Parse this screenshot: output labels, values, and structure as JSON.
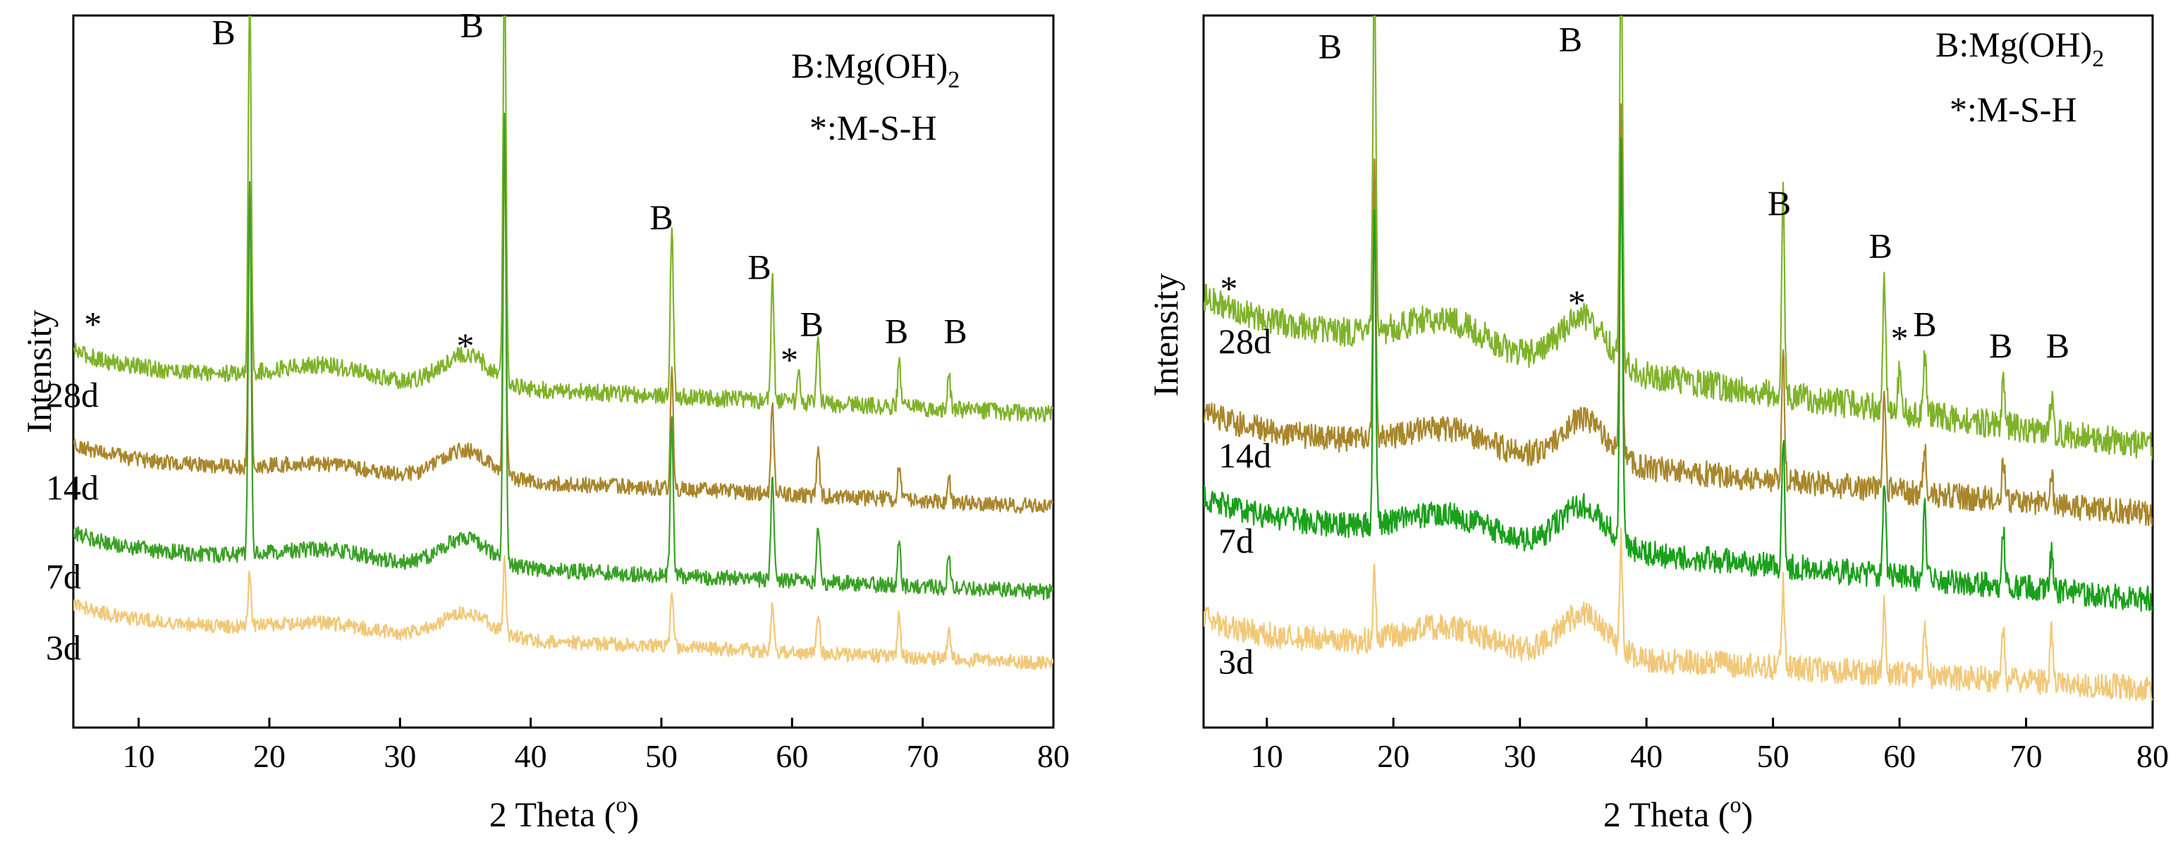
{
  "chart_data": [
    {
      "type": "line",
      "panel": "left",
      "xlabel": "2 Theta (o)",
      "xlabel_main": "2 Theta (",
      "xlabel_sup": "o",
      "xlabel_close": ")",
      "ylabel": "Intensity",
      "xlim": [
        5,
        80
      ],
      "xticks": [
        10,
        20,
        30,
        40,
        50,
        60,
        70,
        80
      ],
      "ylim": [
        0,
        100
      ],
      "legend": {
        "line1_main": "B:Mg(OH)",
        "line1_sub": "2",
        "line2": "*:M-S-H"
      },
      "series": [
        {
          "name": "28d",
          "color": "#7fb22a",
          "baseline_start": 50.5,
          "baseline_end": 44.0,
          "hump_pos": 35,
          "hump_height": 4.5,
          "hump2_height": 2.0,
          "noise": 1.2,
          "peaks": [
            [
              18.5,
              53
            ],
            [
              38.0,
              58
            ],
            [
              50.8,
              24
            ],
            [
              58.5,
              18
            ],
            [
              62.0,
              9
            ],
            [
              68.2,
              6
            ],
            [
              72.0,
              5
            ],
            [
              60.5,
              4
            ]
          ]
        },
        {
          "name": "14d",
          "color": "#a8862c",
          "baseline_start": 37.5,
          "baseline_end": 31.0,
          "hump_pos": 35,
          "hump_height": 4.0,
          "hump2_height": 1.2,
          "noise": 1.1,
          "peaks": [
            [
              18.5,
              40
            ],
            [
              38.0,
              48
            ],
            [
              50.8,
              16
            ],
            [
              58.5,
              13
            ],
            [
              62.0,
              7
            ],
            [
              68.2,
              5
            ],
            [
              72.0,
              4
            ]
          ]
        },
        {
          "name": "7d",
          "color": "#3aa025",
          "baseline_start": 25.0,
          "baseline_end": 19.0,
          "hump_pos": 35,
          "hump_height": 4.0,
          "hump2_height": 1.5,
          "noise": 1.1,
          "peaks": [
            [
              18.5,
              52
            ],
            [
              38.0,
              62
            ],
            [
              50.8,
              22
            ],
            [
              58.5,
              15
            ],
            [
              62.0,
              8
            ],
            [
              68.2,
              7
            ],
            [
              72.0,
              5
            ]
          ]
        },
        {
          "name": "3d",
          "color": "#f1c878",
          "baseline_start": 15.0,
          "baseline_end": 9.0,
          "hump_pos": 35,
          "hump_height": 3.5,
          "hump2_height": 1.2,
          "noise": 1.0,
          "peaks": [
            [
              18.5,
              8
            ],
            [
              38.0,
              10
            ],
            [
              50.8,
              8
            ],
            [
              58.5,
              7
            ],
            [
              62.0,
              6
            ],
            [
              68.2,
              6
            ],
            [
              72.0,
              5
            ]
          ]
        }
      ],
      "annotations": [
        {
          "text": "B",
          "x": 16.5,
          "y": 96
        },
        {
          "text": "B",
          "x": 35.5,
          "y": 97
        },
        {
          "text": "B",
          "x": 50.0,
          "y": 70
        },
        {
          "text": "B",
          "x": 57.5,
          "y": 63
        },
        {
          "text": "B",
          "x": 61.5,
          "y": 55
        },
        {
          "text": "B",
          "x": 68.0,
          "y": 54
        },
        {
          "text": "B",
          "x": 72.5,
          "y": 54
        },
        {
          "text": "*",
          "x": 6.5,
          "y": 55
        },
        {
          "text": "*",
          "x": 35.0,
          "y": 52
        },
        {
          "text": "*",
          "x": 59.8,
          "y": 50
        }
      ]
    },
    {
      "type": "line",
      "panel": "right",
      "xlabel": "2 Theta (o)",
      "xlabel_main": "2 Theta (",
      "xlabel_sup": "o",
      "xlabel_close": ")",
      "ylabel": "Intensity",
      "xlim": [
        5,
        80
      ],
      "xticks": [
        10,
        20,
        30,
        40,
        50,
        60,
        70,
        80
      ],
      "ylim": [
        0,
        100
      ],
      "legend": {
        "line1_main": "B:Mg(OH)",
        "line1_sub": "2",
        "line2": "*:M-S-H"
      },
      "series": [
        {
          "name": "28d",
          "color": "#7fb22a",
          "baseline_start": 58.0,
          "baseline_end": 39.5,
          "hump_pos": 35,
          "hump_height": 7.0,
          "hump2_height": 4.0,
          "noise": 2.0,
          "peaks": [
            [
              18.5,
              50
            ],
            [
              38.0,
              60
            ],
            [
              50.8,
              28
            ],
            [
              58.8,
              18
            ],
            [
              62.0,
              8
            ],
            [
              68.2,
              6
            ],
            [
              72.0,
              5
            ],
            [
              60.0,
              6
            ]
          ]
        },
        {
          "name": "14d",
          "color": "#a8862c",
          "baseline_start": 42.0,
          "baseline_end": 30.0,
          "hump_pos": 35,
          "hump_height": 6.0,
          "hump2_height": 3.0,
          "noise": 1.8,
          "peaks": [
            [
              18.5,
              38
            ],
            [
              38.0,
              48
            ],
            [
              50.8,
              18
            ],
            [
              58.8,
              14
            ],
            [
              62.0,
              7
            ],
            [
              68.2,
              6
            ],
            [
              72.0,
              5
            ]
          ]
        },
        {
          "name": "7d",
          "color": "#1aa01a",
          "baseline_start": 30.0,
          "baseline_end": 18.0,
          "hump_pos": 35,
          "hump_height": 6.0,
          "hump2_height": 3.0,
          "noise": 1.8,
          "peaks": [
            [
              18.5,
              45
            ],
            [
              38.0,
              55
            ],
            [
              50.8,
              18
            ],
            [
              58.8,
              14
            ],
            [
              62.0,
              10
            ],
            [
              68.2,
              8
            ],
            [
              72.0,
              5
            ]
          ]
        },
        {
          "name": "3d",
          "color": "#f1c878",
          "baseline_start": 13.0,
          "baseline_end": 5.5,
          "hump_pos": 35,
          "hump_height": 6.0,
          "hump2_height": 3.0,
          "noise": 1.8,
          "peaks": [
            [
              18.5,
              10
            ],
            [
              38.0,
              15
            ],
            [
              50.8,
              12
            ],
            [
              58.8,
              10
            ],
            [
              62.0,
              7
            ],
            [
              68.2,
              8
            ],
            [
              72.0,
              7
            ]
          ]
        }
      ],
      "annotations": [
        {
          "text": "B",
          "x": 15.0,
          "y": 94
        },
        {
          "text": "B",
          "x": 34.0,
          "y": 95
        },
        {
          "text": "B",
          "x": 50.5,
          "y": 72
        },
        {
          "text": "B",
          "x": 58.5,
          "y": 66
        },
        {
          "text": "B",
          "x": 62.0,
          "y": 55
        },
        {
          "text": "B",
          "x": 68.0,
          "y": 52
        },
        {
          "text": "B",
          "x": 72.5,
          "y": 52
        },
        {
          "text": "*",
          "x": 7.0,
          "y": 60
        },
        {
          "text": "*",
          "x": 34.5,
          "y": 58
        },
        {
          "text": "*",
          "x": 60.0,
          "y": 53
        }
      ]
    }
  ]
}
